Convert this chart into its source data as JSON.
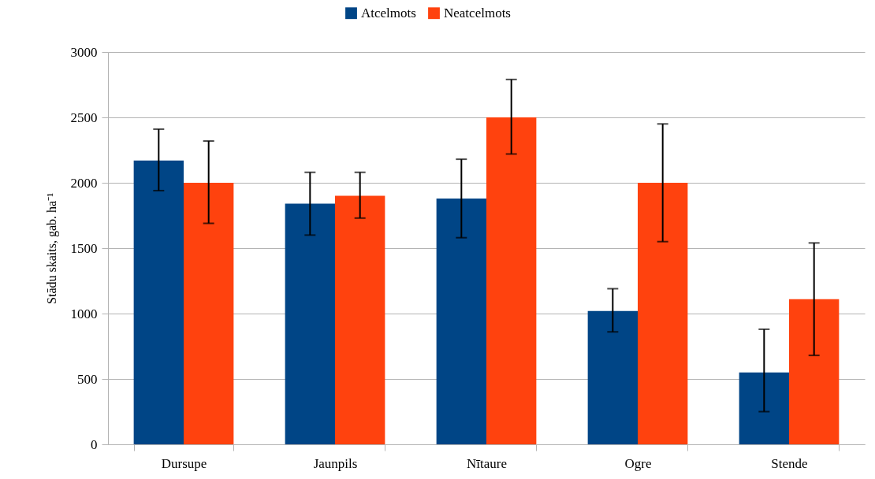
{
  "chart_data": {
    "type": "bar",
    "ylabel": "Stādu skaits, gab. ha⁻¹",
    "categories": [
      "Dursupe",
      "Jaunpils",
      "Nītaure",
      "Ogre",
      "Stende"
    ],
    "series": [
      {
        "name": "Atcelmots",
        "color": "#004586",
        "values": [
          2170,
          1840,
          1880,
          1020,
          550
        ],
        "errors": [
          [
            1940,
            2410
          ],
          [
            1600,
            2080
          ],
          [
            1580,
            2180
          ],
          [
            860,
            1190
          ],
          [
            250,
            880
          ]
        ]
      },
      {
        "name": "Neatcelmots",
        "color": "#ff420e",
        "values": [
          2000,
          1900,
          2500,
          2000,
          1110
        ],
        "errors": [
          [
            1690,
            2320
          ],
          [
            1730,
            2080
          ],
          [
            2220,
            2790
          ],
          [
            1550,
            2450
          ],
          [
            680,
            1540
          ]
        ]
      }
    ],
    "ylim": [
      0,
      3000
    ],
    "yticks": [
      0,
      500,
      1000,
      1500,
      2000,
      2500,
      3000
    ],
    "grid": "y",
    "legend": "top"
  }
}
